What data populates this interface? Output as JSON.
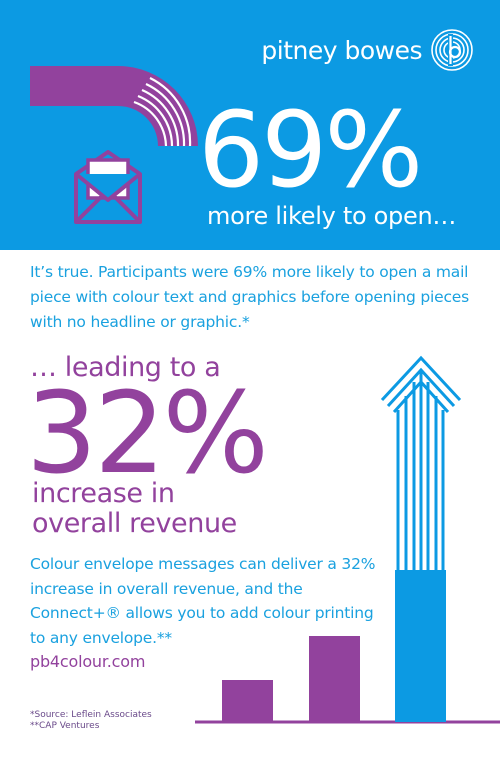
{
  "brand": {
    "name": "pitney bowes",
    "icon": "pb-logo-icon"
  },
  "headline": {
    "percent": "69%",
    "subtitle": "more likely to open…"
  },
  "intro_text": "It’s true. Participants were 69% more likely to open a mail piece with colour text and graphics before opening pieces with no headline or graphic.*",
  "revenue": {
    "lead": "… leading to a",
    "percent": "32%",
    "line1": "increase in",
    "line2": "overall revenue"
  },
  "body_text": "Colour envelope messages can deliver a 32% increase in overall revenue, and the Connect+® allows you to add colour printing to any envelope.**",
  "website": "pb4colour.com",
  "sources": {
    "first": "*Source: Leflein Associates",
    "second": "**CAP Ventures"
  },
  "colors": {
    "blue": "#0c9ae3",
    "purple": "#92429d",
    "text_blue": "#1aa1df"
  }
}
